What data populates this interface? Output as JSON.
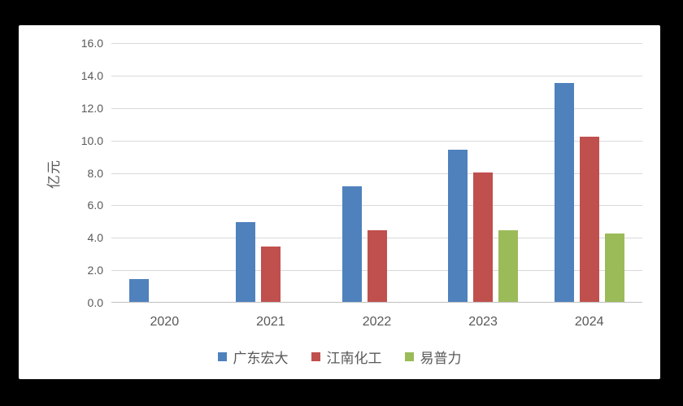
{
  "chart_data": {
    "type": "bar",
    "title": "",
    "categories": [
      "2020",
      "2021",
      "2022",
      "2023",
      "2024"
    ],
    "series": [
      {
        "name": "广东宏大",
        "color": "#4F81BD",
        "values": [
          1.4,
          4.9,
          7.1,
          9.4,
          13.5
        ]
      },
      {
        "name": "江南化工",
        "color": "#C0504D",
        "values": [
          null,
          3.4,
          4.4,
          8.0,
          10.2
        ]
      },
      {
        "name": "易普力",
        "color": "#9BBB59",
        "values": [
          null,
          null,
          null,
          4.4,
          4.2
        ]
      }
    ],
    "xlabel": "",
    "ylabel": "亿元",
    "ylim": [
      0,
      16
    ],
    "yticks": [
      "0.0",
      "2.0",
      "4.0",
      "6.0",
      "8.0",
      "10.0",
      "12.0",
      "14.0",
      "16.0"
    ],
    "grid": true,
    "legend_position": "bottom",
    "grid_color": "#d9d9d9",
    "axis_color": "#bfbfbf",
    "text_color": "#595959",
    "panel_background": "#ffffff",
    "page_background": "#000000"
  }
}
